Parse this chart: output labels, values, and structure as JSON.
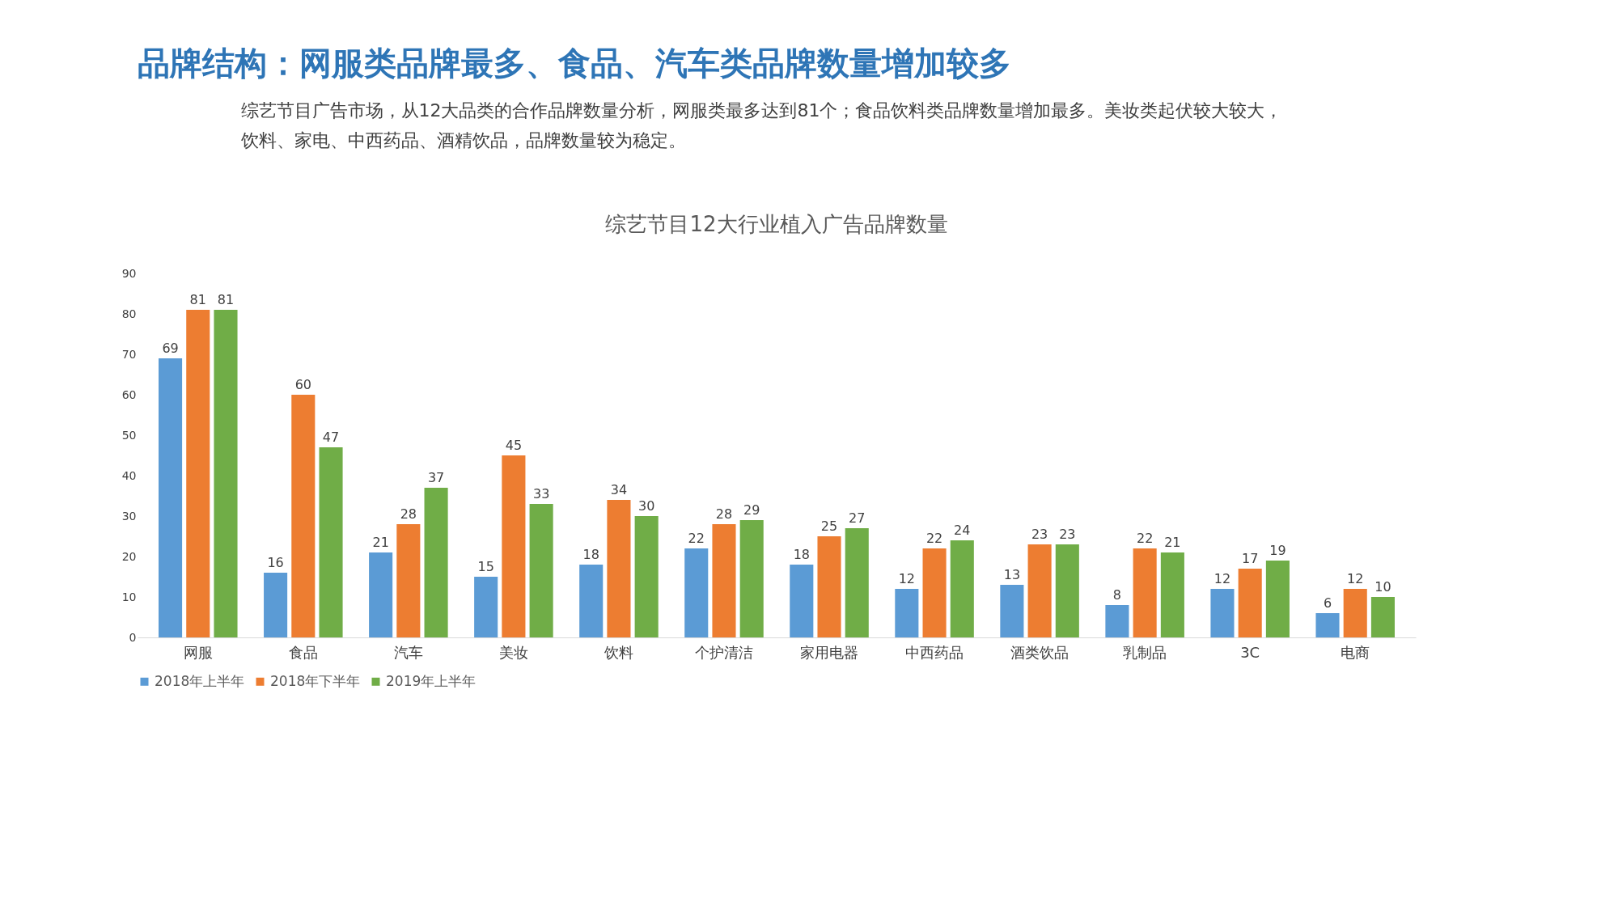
{
  "chart_data": {
    "type": "bar",
    "title": "综艺节目12大行业植入广告品牌数量",
    "annotations": [
      "品牌结构：网服类品牌最多、食品、汽车类品牌数量增加较多",
      "综艺节目广告市场，从12大品类的合作品牌数量分析，网服类最多达到81个；食品饮料类品牌数量增加最多。美妆类起伏较大较大，饮料、家电、中西药品、酒精饮品，品牌数量较为稳定。"
    ],
    "categories": [
      "网服",
      "食品",
      "汽车",
      "美妆",
      "饮料",
      "个护清洁",
      "家用电器",
      "中西药品",
      "酒类饮品",
      "乳制品",
      "3C",
      "电商"
    ],
    "series": [
      {
        "name": "2018年上半年",
        "color": "#5b9bd5",
        "values": [
          69,
          16,
          21,
          15,
          18,
          22,
          18,
          12,
          13,
          8,
          12,
          6
        ]
      },
      {
        "name": "2018年下半年",
        "color": "#ed7d31",
        "values": [
          81,
          60,
          28,
          45,
          34,
          28,
          25,
          22,
          23,
          22,
          17,
          12
        ]
      },
      {
        "name": "2019年上半年",
        "color": "#70ad47",
        "values": [
          81,
          47,
          37,
          33,
          30,
          29,
          27,
          24,
          23,
          21,
          19,
          10
        ]
      }
    ],
    "ylim": [
      0,
      90
    ],
    "yticks": [
      0,
      10,
      20,
      30,
      40,
      50,
      60,
      70,
      80,
      90
    ],
    "data_labels": true,
    "grid": false,
    "legend": "bottom"
  }
}
